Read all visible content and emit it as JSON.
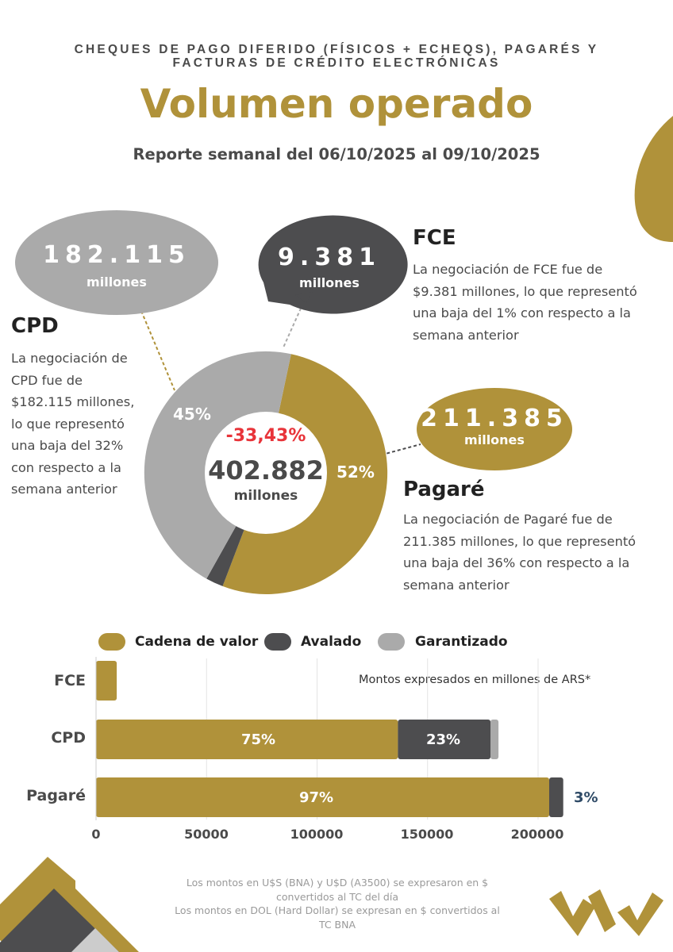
{
  "header": {
    "kicker": "CHEQUES DE PAGO DIFERIDO (FÍSICOS + ECHEQS), PAGARÉS Y FACTURAS DE CRÉDITO ELECTRÓNICAS",
    "title": "Volumen operado",
    "subtitle": "Reporte semanal del 06/10/2025 al 09/10/2025"
  },
  "colors": {
    "gold": "#b0923a",
    "dark": "#4d4d4f",
    "light": "#aaaaaa",
    "red": "#e8343a",
    "navy": "#2e4a66"
  },
  "donut": {
    "center_change": "-33,43%",
    "center_total": "402.882",
    "center_unit": "millones"
  },
  "instruments": {
    "cpd": {
      "name": "CPD",
      "volume": "182.115",
      "unit": "millones",
      "share_label": "45%",
      "description": "La negociación de CPD fue de $182.115 millones, lo que representó una baja del 32% con respecto a la semana anterior"
    },
    "fce": {
      "name": "FCE",
      "volume": "9.381",
      "unit": "millones",
      "description": "La negociación de FCE fue de $9.381 millones, lo que representó una baja del 1% con respecto a la semana anterior"
    },
    "pagare": {
      "name": "Pagaré",
      "volume": "211.385",
      "unit": "millones",
      "share_label": "52%",
      "description": "La negociación de Pagaré fue de 211.385 millones, lo que representó una baja del 36% con respecto a la semana anterior"
    }
  },
  "bar_chart": {
    "note": "Montos expresados en millones de ARS*",
    "legend": [
      "Cadena de valor",
      "Avalado",
      "Garantizado"
    ],
    "x_ticks": [
      "0",
      "50000",
      "100000",
      "150000",
      "200000"
    ],
    "rows": [
      {
        "category": "FCE",
        "labels": [
          "",
          "",
          ""
        ]
      },
      {
        "category": "CPD",
        "labels": [
          "75%",
          "23%",
          ""
        ]
      },
      {
        "category": "Pagaré",
        "labels": [
          "97%",
          "3%",
          ""
        ]
      }
    ]
  },
  "footnote": [
    "Los montos en U$S (BNA) y U$D (A3500) se expresaron en $ convertidos al TC del día",
    "Los montos en DOL (Hard Dollar) se expresan en $ convertidos al TC BNA"
  ],
  "chart_data": [
    {
      "type": "pie",
      "title": "",
      "categories": [
        "Pagaré",
        "FCE",
        "CPD"
      ],
      "values": [
        211385,
        9381,
        182115
      ],
      "percent_labels": [
        "52%",
        "",
        "45%"
      ],
      "total": 402882,
      "colors": [
        "#b0923a",
        "#4d4d4f",
        "#aaaaaa"
      ]
    },
    {
      "type": "bar",
      "orientation": "horizontal",
      "stacked": true,
      "categories": [
        "FCE",
        "CPD",
        "Pagaré"
      ],
      "series": [
        {
          "name": "Cadena de valor",
          "values": [
            9381,
            136586,
            205043
          ]
        },
        {
          "name": "Avalado",
          "values": [
            0,
            41886,
            6342
          ]
        },
        {
          "name": "Garantizado",
          "values": [
            0,
            3643,
            0
          ]
        }
      ],
      "xlim": [
        0,
        220000
      ],
      "xticks": [
        0,
        50000,
        100000,
        150000,
        200000
      ],
      "grid": true,
      "legend": "top"
    }
  ]
}
